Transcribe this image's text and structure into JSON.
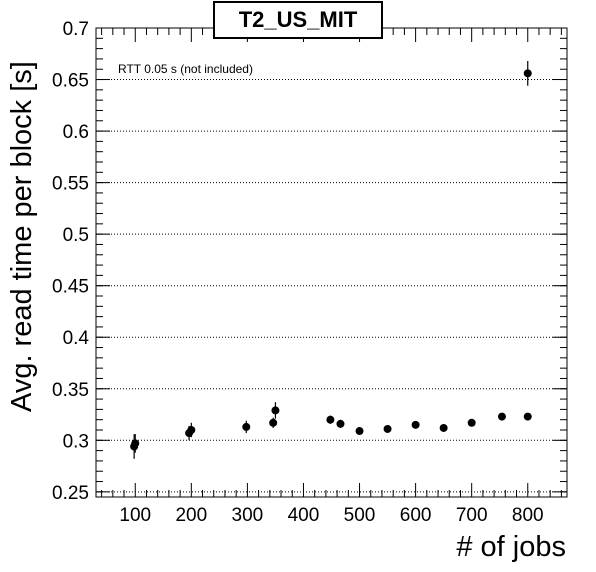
{
  "chart_data": {
    "type": "scatter",
    "title": "T2_US_MIT",
    "annotation": "RTT 0.05 s (not included)",
    "xlabel": "# of jobs",
    "ylabel": "Avg. read time per block [s]",
    "xlim": [
      30,
      870
    ],
    "ylim": [
      0.245,
      0.7
    ],
    "grid": "horizontal dotted at major y ticks",
    "x_ticks": [
      {
        "value": 100,
        "label": "100"
      },
      {
        "value": 200,
        "label": "200"
      },
      {
        "value": 300,
        "label": "300"
      },
      {
        "value": 400,
        "label": "400"
      },
      {
        "value": 500,
        "label": "500"
      },
      {
        "value": 600,
        "label": "600"
      },
      {
        "value": 700,
        "label": "700"
      },
      {
        "value": 800,
        "label": "800"
      }
    ],
    "y_ticks": [
      {
        "value": 0.25,
        "label": "0.25"
      },
      {
        "value": 0.3,
        "label": "0.3"
      },
      {
        "value": 0.35,
        "label": "0.35"
      },
      {
        "value": 0.4,
        "label": "0.4"
      },
      {
        "value": 0.45,
        "label": "0.45"
      },
      {
        "value": 0.5,
        "label": "0.5"
      },
      {
        "value": 0.55,
        "label": "0.55"
      },
      {
        "value": 0.6,
        "label": "0.6"
      },
      {
        "value": 0.65,
        "label": "0.65"
      },
      {
        "value": 0.7,
        "label": "0.7"
      }
    ],
    "series": [
      {
        "points": [
          {
            "x": 98,
            "y": 0.294,
            "err": 0.012
          },
          {
            "x": 100,
            "y": 0.297,
            "err": 0.009
          },
          {
            "x": 196,
            "y": 0.307,
            "err": 0.007
          },
          {
            "x": 200,
            "y": 0.31,
            "err": 0.007
          },
          {
            "x": 298,
            "y": 0.313,
            "err": 0.006
          },
          {
            "x": 346,
            "y": 0.317,
            "err": 0.005
          },
          {
            "x": 350,
            "y": 0.329,
            "err": 0.008
          },
          {
            "x": 448,
            "y": 0.32,
            "err": 0.004
          },
          {
            "x": 466,
            "y": 0.316,
            "err": 0.004
          },
          {
            "x": 500,
            "y": 0.309,
            "err": 0.003
          },
          {
            "x": 550,
            "y": 0.311,
            "err": 0.003
          },
          {
            "x": 600,
            "y": 0.315,
            "err": 0.003
          },
          {
            "x": 650,
            "y": 0.312,
            "err": 0.003
          },
          {
            "x": 700,
            "y": 0.317,
            "err": 0.003
          },
          {
            "x": 754,
            "y": 0.323,
            "err": 0.003
          },
          {
            "x": 800,
            "y": 0.323,
            "err": 0.003
          },
          {
            "x": 800,
            "y": 0.656,
            "err": 0.012
          }
        ]
      }
    ],
    "colors": {
      "axis": "#000000",
      "marker": "#000000",
      "grid": "#000000",
      "background": "#ffffff"
    }
  }
}
